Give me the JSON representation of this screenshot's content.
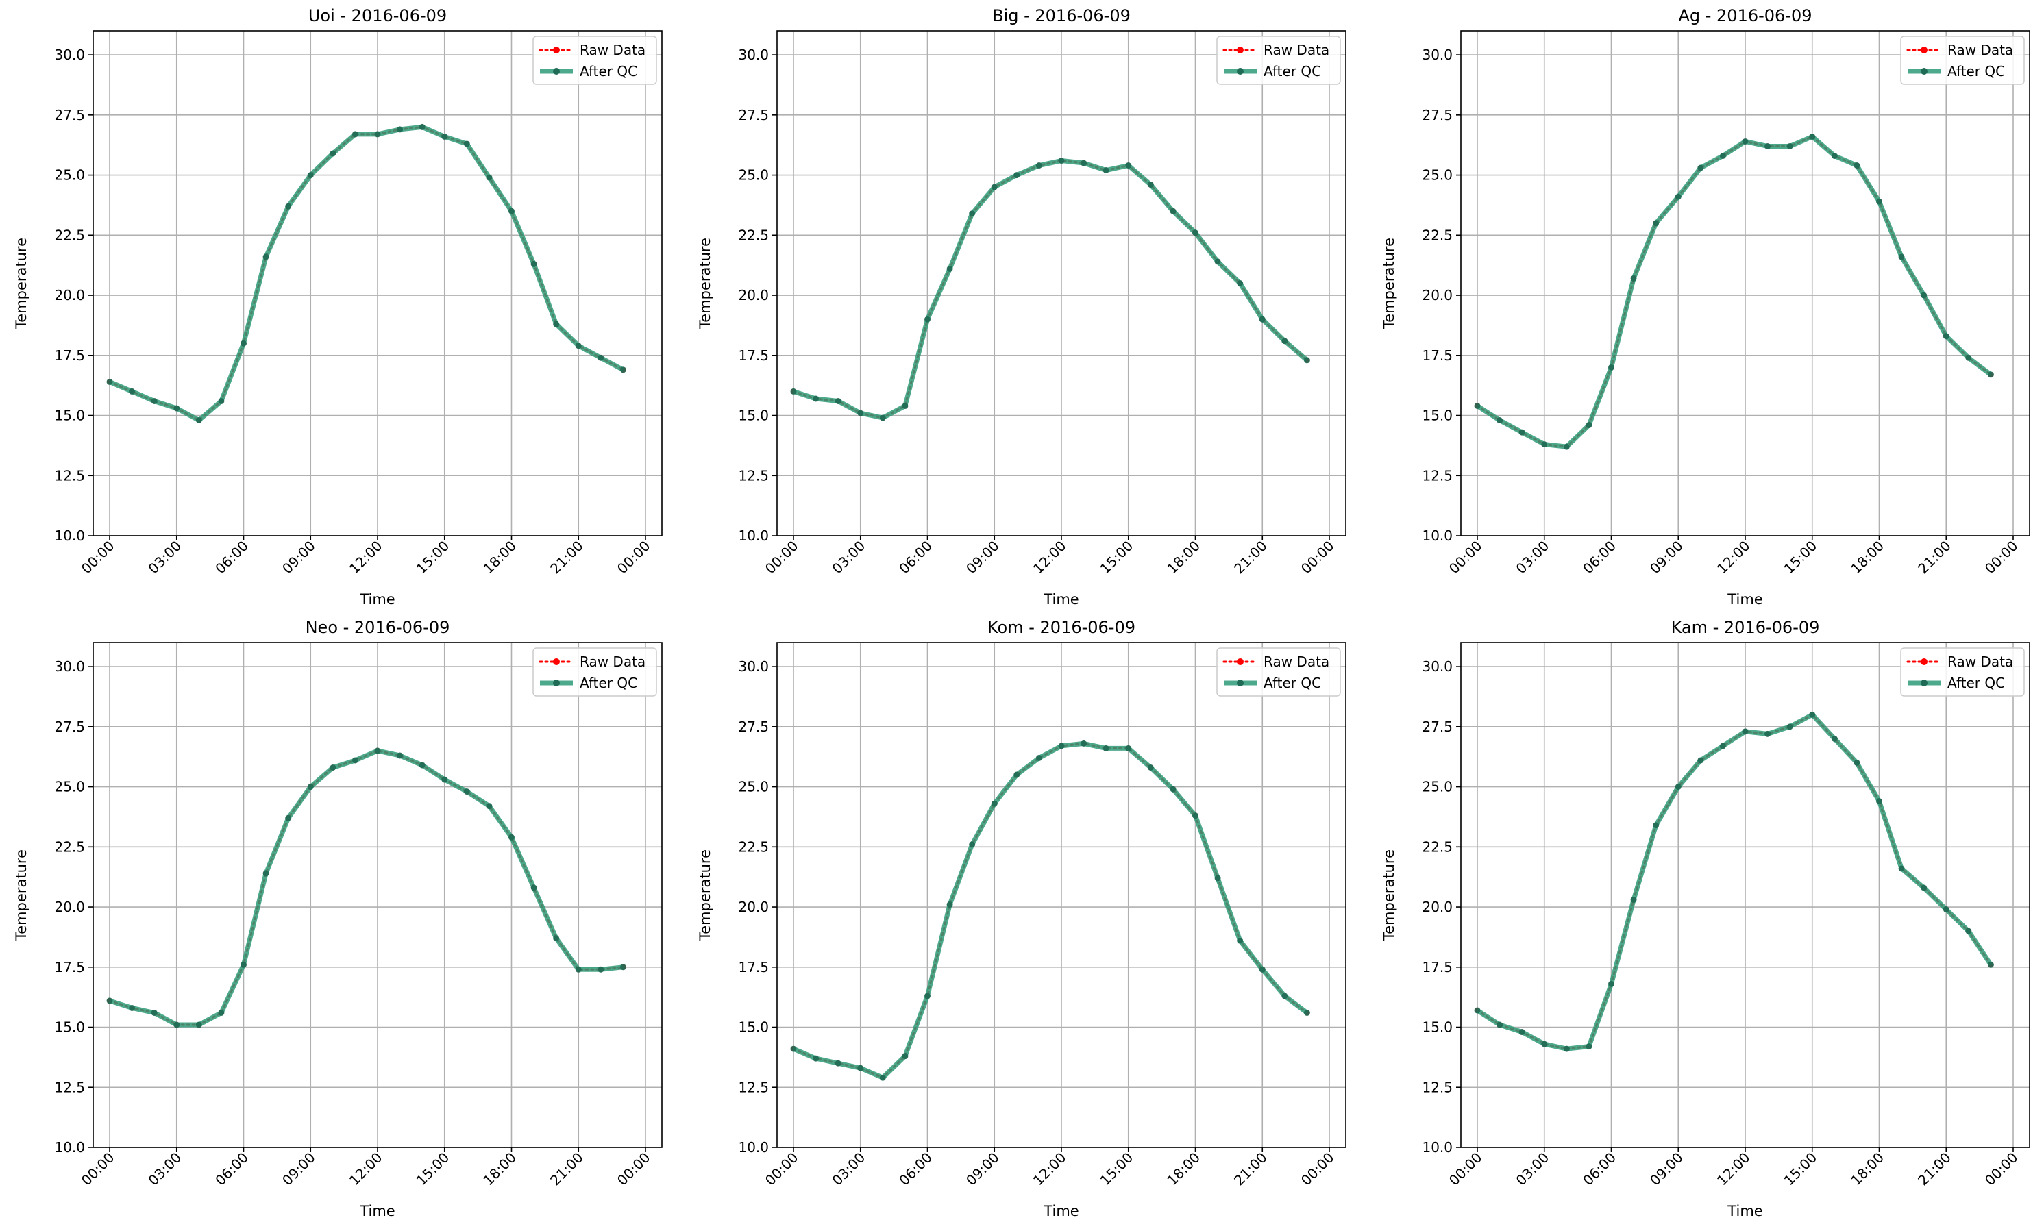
{
  "chart_data": [
    {
      "type": "line",
      "title": "Uoi - 2016-06-09",
      "xlabel": "Time",
      "ylabel": "Temperature",
      "ylim": [
        10.0,
        31.0
      ],
      "y_ticks": [
        "10.0",
        "12.5",
        "15.0",
        "17.5",
        "20.0",
        "22.5",
        "25.0",
        "27.5",
        "30.0"
      ],
      "x_ticks": [
        "00:00",
        "03:00",
        "06:00",
        "09:00",
        "12:00",
        "15:00",
        "18:00",
        "21:00",
        "00:00"
      ],
      "grid": true,
      "legend": "top-right",
      "x": [
        "00:00",
        "01:00",
        "02:00",
        "03:00",
        "04:00",
        "05:00",
        "06:00",
        "07:00",
        "08:00",
        "09:00",
        "10:00",
        "11:00",
        "12:00",
        "13:00",
        "14:00",
        "15:00",
        "16:00",
        "17:00",
        "18:00",
        "19:00",
        "20:00",
        "21:00",
        "22:00",
        "23:00"
      ],
      "series": [
        {
          "name": "Raw Data",
          "values": [
            16.4,
            16.0,
            15.6,
            15.3,
            14.8,
            15.6,
            18.0,
            21.6,
            23.7,
            25.0,
            25.9,
            26.7,
            26.7,
            26.9,
            27.0,
            26.6,
            26.3,
            24.9,
            23.5,
            21.3,
            18.8,
            17.9,
            17.4,
            16.9
          ]
        },
        {
          "name": "After QC",
          "values": [
            16.4,
            16.0,
            15.6,
            15.3,
            14.8,
            15.6,
            18.0,
            21.6,
            23.7,
            25.0,
            25.9,
            26.7,
            26.7,
            26.9,
            27.0,
            26.6,
            26.3,
            24.9,
            23.5,
            21.3,
            18.8,
            17.9,
            17.4,
            16.9
          ]
        }
      ]
    },
    {
      "type": "line",
      "title": "Big - 2016-06-09",
      "xlabel": "Time",
      "ylabel": "Temperature",
      "ylim": [
        10.0,
        31.0
      ],
      "y_ticks": [
        "10.0",
        "12.5",
        "15.0",
        "17.5",
        "20.0",
        "22.5",
        "25.0",
        "27.5",
        "30.0"
      ],
      "x_ticks": [
        "00:00",
        "03:00",
        "06:00",
        "09:00",
        "12:00",
        "15:00",
        "18:00",
        "21:00",
        "00:00"
      ],
      "grid": true,
      "legend": "top-right",
      "x": [
        "00:00",
        "01:00",
        "02:00",
        "03:00",
        "04:00",
        "05:00",
        "06:00",
        "07:00",
        "08:00",
        "09:00",
        "10:00",
        "11:00",
        "12:00",
        "13:00",
        "14:00",
        "15:00",
        "16:00",
        "17:00",
        "18:00",
        "19:00",
        "20:00",
        "21:00",
        "22:00",
        "23:00"
      ],
      "series": [
        {
          "name": "Raw Data",
          "values": [
            16.0,
            15.7,
            15.6,
            15.1,
            14.9,
            15.4,
            19.0,
            21.1,
            23.4,
            24.5,
            25.0,
            25.4,
            25.6,
            25.5,
            25.2,
            25.4,
            24.6,
            23.5,
            22.6,
            21.4,
            20.5,
            19.0,
            18.1,
            17.3
          ]
        },
        {
          "name": "After QC",
          "values": [
            16.0,
            15.7,
            15.6,
            15.1,
            14.9,
            15.4,
            19.0,
            21.1,
            23.4,
            24.5,
            25.0,
            25.4,
            25.6,
            25.5,
            25.2,
            25.4,
            24.6,
            23.5,
            22.6,
            21.4,
            20.5,
            19.0,
            18.1,
            17.3
          ]
        }
      ]
    },
    {
      "type": "line",
      "title": "Ag - 2016-06-09",
      "xlabel": "Time",
      "ylabel": "Temperature",
      "ylim": [
        10.0,
        31.0
      ],
      "y_ticks": [
        "10.0",
        "12.5",
        "15.0",
        "17.5",
        "20.0",
        "22.5",
        "25.0",
        "27.5",
        "30.0"
      ],
      "x_ticks": [
        "00:00",
        "03:00",
        "06:00",
        "09:00",
        "12:00",
        "15:00",
        "18:00",
        "21:00",
        "00:00"
      ],
      "grid": true,
      "legend": "top-right",
      "x": [
        "00:00",
        "01:00",
        "02:00",
        "03:00",
        "04:00",
        "05:00",
        "06:00",
        "07:00",
        "08:00",
        "09:00",
        "10:00",
        "11:00",
        "12:00",
        "13:00",
        "14:00",
        "15:00",
        "16:00",
        "17:00",
        "18:00",
        "19:00",
        "20:00",
        "21:00",
        "22:00",
        "23:00"
      ],
      "series": [
        {
          "name": "Raw Data",
          "values": [
            15.4,
            14.8,
            14.3,
            13.8,
            13.7,
            14.6,
            17.0,
            20.7,
            23.0,
            24.1,
            25.3,
            25.8,
            26.4,
            26.2,
            26.2,
            26.6,
            25.8,
            25.4,
            23.9,
            21.6,
            20.0,
            18.3,
            17.4,
            16.7
          ]
        },
        {
          "name": "After QC",
          "values": [
            15.4,
            14.8,
            14.3,
            13.8,
            13.7,
            14.6,
            17.0,
            20.7,
            23.0,
            24.1,
            25.3,
            25.8,
            26.4,
            26.2,
            26.2,
            26.6,
            25.8,
            25.4,
            23.9,
            21.6,
            20.0,
            18.3,
            17.4,
            16.7
          ]
        }
      ]
    },
    {
      "type": "line",
      "title": "Neo - 2016-06-09",
      "xlabel": "Time",
      "ylabel": "Temperature",
      "ylim": [
        10.0,
        31.0
      ],
      "y_ticks": [
        "10.0",
        "12.5",
        "15.0",
        "17.5",
        "20.0",
        "22.5",
        "25.0",
        "27.5",
        "30.0"
      ],
      "x_ticks": [
        "00:00",
        "03:00",
        "06:00",
        "09:00",
        "12:00",
        "15:00",
        "18:00",
        "21:00",
        "00:00"
      ],
      "grid": true,
      "legend": "top-right",
      "x": [
        "00:00",
        "01:00",
        "02:00",
        "03:00",
        "04:00",
        "05:00",
        "06:00",
        "07:00",
        "08:00",
        "09:00",
        "10:00",
        "11:00",
        "12:00",
        "13:00",
        "14:00",
        "15:00",
        "16:00",
        "17:00",
        "18:00",
        "19:00",
        "20:00",
        "21:00",
        "22:00",
        "23:00"
      ],
      "series": [
        {
          "name": "Raw Data",
          "values": [
            16.1,
            15.8,
            15.6,
            15.1,
            15.1,
            15.6,
            17.6,
            21.4,
            23.7,
            25.0,
            25.8,
            26.1,
            26.5,
            26.3,
            25.9,
            25.3,
            24.8,
            24.2,
            22.9,
            20.8,
            18.7,
            17.4,
            17.4,
            17.5
          ]
        },
        {
          "name": "After QC",
          "values": [
            16.1,
            15.8,
            15.6,
            15.1,
            15.1,
            15.6,
            17.6,
            21.4,
            23.7,
            25.0,
            25.8,
            26.1,
            26.5,
            26.3,
            25.9,
            25.3,
            24.8,
            24.2,
            22.9,
            20.8,
            18.7,
            17.4,
            17.4,
            17.5
          ]
        }
      ]
    },
    {
      "type": "line",
      "title": "Kom - 2016-06-09",
      "xlabel": "Time",
      "ylabel": "Temperature",
      "ylim": [
        10.0,
        31.0
      ],
      "y_ticks": [
        "10.0",
        "12.5",
        "15.0",
        "17.5",
        "20.0",
        "22.5",
        "25.0",
        "27.5",
        "30.0"
      ],
      "x_ticks": [
        "00:00",
        "03:00",
        "06:00",
        "09:00",
        "12:00",
        "15:00",
        "18:00",
        "21:00",
        "00:00"
      ],
      "grid": true,
      "legend": "top-right",
      "x": [
        "00:00",
        "01:00",
        "02:00",
        "03:00",
        "04:00",
        "05:00",
        "06:00",
        "07:00",
        "08:00",
        "09:00",
        "10:00",
        "11:00",
        "12:00",
        "13:00",
        "14:00",
        "15:00",
        "16:00",
        "17:00",
        "18:00",
        "19:00",
        "20:00",
        "21:00",
        "22:00",
        "23:00"
      ],
      "series": [
        {
          "name": "Raw Data",
          "values": [
            14.1,
            13.7,
            13.5,
            13.3,
            12.9,
            13.8,
            16.3,
            20.1,
            22.6,
            24.3,
            25.5,
            26.2,
            26.7,
            26.8,
            26.6,
            26.6,
            25.8,
            24.9,
            23.8,
            21.2,
            18.6,
            17.4,
            16.3,
            15.6
          ]
        },
        {
          "name": "After QC",
          "values": [
            14.1,
            13.7,
            13.5,
            13.3,
            12.9,
            13.8,
            16.3,
            20.1,
            22.6,
            24.3,
            25.5,
            26.2,
            26.7,
            26.8,
            26.6,
            26.6,
            25.8,
            24.9,
            23.8,
            21.2,
            18.6,
            17.4,
            16.3,
            15.6
          ]
        }
      ]
    },
    {
      "type": "line",
      "title": "Kam - 2016-06-09",
      "xlabel": "Time",
      "ylabel": "Temperature",
      "ylim": [
        10.0,
        31.0
      ],
      "y_ticks": [
        "10.0",
        "12.5",
        "15.0",
        "17.5",
        "20.0",
        "22.5",
        "25.0",
        "27.5",
        "30.0"
      ],
      "x_ticks": [
        "00:00",
        "03:00",
        "06:00",
        "09:00",
        "12:00",
        "15:00",
        "18:00",
        "21:00",
        "00:00"
      ],
      "grid": true,
      "legend": "top-right",
      "x": [
        "00:00",
        "01:00",
        "02:00",
        "03:00",
        "04:00",
        "05:00",
        "06:00",
        "07:00",
        "08:00",
        "09:00",
        "10:00",
        "11:00",
        "12:00",
        "13:00",
        "14:00",
        "15:00",
        "16:00",
        "17:00",
        "18:00",
        "19:00",
        "20:00",
        "21:00",
        "22:00",
        "23:00"
      ],
      "series": [
        {
          "name": "Raw Data",
          "values": [
            15.7,
            15.1,
            14.8,
            14.3,
            14.1,
            14.2,
            16.8,
            20.3,
            23.4,
            25.0,
            26.1,
            26.7,
            27.3,
            27.2,
            27.5,
            28.0,
            27.0,
            26.0,
            24.4,
            21.6,
            20.8,
            19.9,
            19.0,
            17.6
          ]
        },
        {
          "name": "After QC",
          "values": [
            15.7,
            15.1,
            14.8,
            14.3,
            14.1,
            14.2,
            16.8,
            20.3,
            23.4,
            25.0,
            26.1,
            26.7,
            27.3,
            27.2,
            27.5,
            28.0,
            27.0,
            26.0,
            24.4,
            21.6,
            20.8,
            19.9,
            19.0,
            17.6
          ]
        }
      ]
    }
  ],
  "colors": {
    "raw": "#ff0000",
    "qc_line": "#2e9a78",
    "qc_marker": "#1f6b55",
    "grid": "#b0b0b0",
    "axis": "#000000"
  }
}
